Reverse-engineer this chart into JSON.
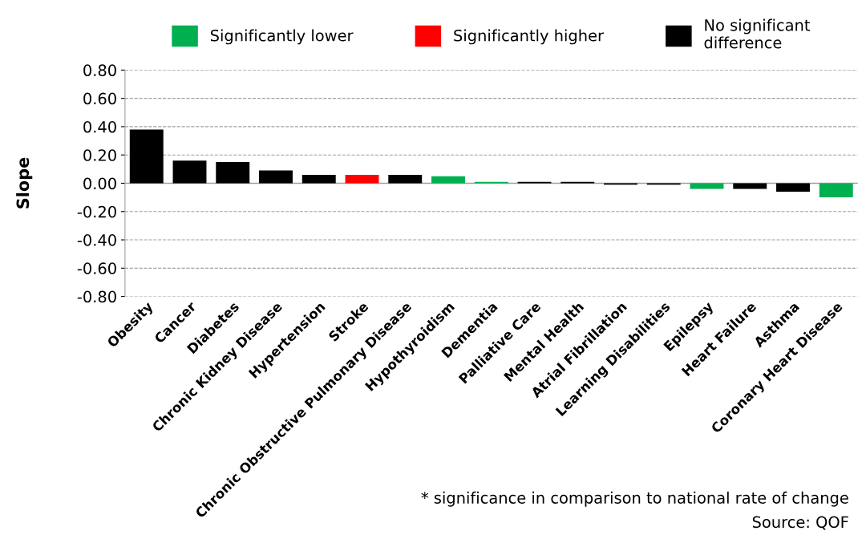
{
  "chart_data": {
    "type": "bar",
    "stacked": true,
    "ylabel": "Slope",
    "categories": [
      "Obesity",
      "Cancer",
      "Diabetes",
      "Chronic Kidney Disease",
      "Hypertension",
      "Stroke",
      "Chronic Obstructive Pulmonary Disease",
      "Hypothyroidism",
      "Dementia",
      "Palliative Care",
      "Mental Health",
      "Atrial Fibrillation",
      "Learning Disabilities",
      "Epilepsy",
      "Heart Failure",
      "Asthma",
      "Coronary Heart Disease"
    ],
    "series": [
      {
        "name": "Significantly lower",
        "color": "#00b050",
        "values": [
          null,
          null,
          null,
          null,
          null,
          null,
          null,
          0.05,
          0.01,
          null,
          null,
          null,
          null,
          -0.04,
          null,
          null,
          -0.1
        ]
      },
      {
        "name": "Significantly higher",
        "color": "#ff0000",
        "values": [
          null,
          null,
          null,
          null,
          null,
          0.06,
          null,
          null,
          null,
          null,
          null,
          null,
          null,
          null,
          null,
          null,
          null
        ]
      },
      {
        "name": "No significant difference",
        "color": "#000000",
        "values": [
          0.38,
          0.16,
          0.15,
          0.09,
          0.06,
          null,
          0.06,
          null,
          null,
          0.01,
          0.01,
          -0.01,
          -0.01,
          null,
          -0.04,
          -0.06,
          null
        ]
      }
    ],
    "ylim": [
      -0.8,
      0.8
    ],
    "yticks": [
      {
        "value": -0.8,
        "label": "-0.80"
      },
      {
        "value": -0.6,
        "label": "-0.60"
      },
      {
        "value": -0.4,
        "label": "-0.40"
      },
      {
        "value": -0.2,
        "label": "-0.20"
      },
      {
        "value": 0,
        "label": "0.00"
      },
      {
        "value": 0.2,
        "label": "0.20"
      },
      {
        "value": 0.4,
        "label": "0.40"
      },
      {
        "value": 0.6,
        "label": "0.60"
      },
      {
        "value": 0.8,
        "label": "0.80"
      }
    ],
    "grid": "y",
    "legend": "top",
    "annotations": [
      "* significance in comparison to national rate of change",
      "Source: QOF"
    ]
  }
}
